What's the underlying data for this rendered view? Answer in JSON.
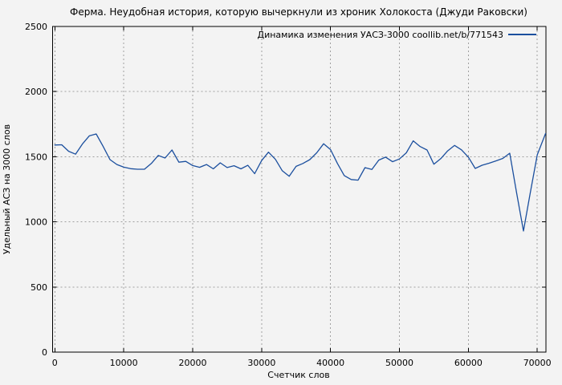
{
  "window": {
    "title": "Ферма. Неудобная история, которую вычеркнули из хроник Холокоста (Джуди Раковски)"
  },
  "colors": {
    "background": "#f3f3f3",
    "border": "#000000",
    "grid": "#a0a0a0",
    "line": "#1b4f9e",
    "text": "#000000"
  },
  "chart_data": {
    "type": "line",
    "title": "Ферма. Неудобная история, которую вычеркнули из хроник Холокоста (Джуди Раковски)",
    "xlabel": "Счетчик слов",
    "ylabel": "Удельный АСЗ на 3000 слов",
    "legend": [
      {
        "label": "Динамика изменения УАСЗ-3000 coollib.net/b/771543",
        "color": "#1b4f9e"
      }
    ],
    "legend_position": "top-right-inside",
    "grid": "dashed",
    "xlim": [
      0,
      71200
    ],
    "ylim": [
      0,
      2500
    ],
    "x_ticks": [
      0,
      10000,
      20000,
      30000,
      40000,
      50000,
      60000,
      70000
    ],
    "y_ticks": [
      0,
      500,
      1000,
      1500,
      2000,
      2500
    ],
    "series": [
      {
        "name": "Динамика изменения УАСЗ-3000 coollib.net/b/771543",
        "color": "#1b4f9e",
        "points": [
          [
            0,
            1590
          ],
          [
            1000,
            1592
          ],
          [
            2000,
            1542
          ],
          [
            3000,
            1520
          ],
          [
            4000,
            1597
          ],
          [
            5000,
            1660
          ],
          [
            6000,
            1675
          ],
          [
            7000,
            1580
          ],
          [
            8000,
            1478
          ],
          [
            9000,
            1440
          ],
          [
            10000,
            1420
          ],
          [
            11000,
            1408
          ],
          [
            12000,
            1404
          ],
          [
            13000,
            1404
          ],
          [
            14000,
            1448
          ],
          [
            15000,
            1510
          ],
          [
            16000,
            1490
          ],
          [
            17000,
            1552
          ],
          [
            18000,
            1458
          ],
          [
            19000,
            1464
          ],
          [
            20000,
            1432
          ],
          [
            21000,
            1419
          ],
          [
            22000,
            1440
          ],
          [
            23000,
            1407
          ],
          [
            24000,
            1453
          ],
          [
            25000,
            1417
          ],
          [
            26000,
            1431
          ],
          [
            27000,
            1407
          ],
          [
            28000,
            1434
          ],
          [
            29000,
            1370
          ],
          [
            30000,
            1470
          ],
          [
            31000,
            1535
          ],
          [
            32000,
            1480
          ],
          [
            33000,
            1392
          ],
          [
            34000,
            1350
          ],
          [
            35000,
            1426
          ],
          [
            36000,
            1448
          ],
          [
            37000,
            1478
          ],
          [
            38000,
            1530
          ],
          [
            39000,
            1600
          ],
          [
            40000,
            1555
          ],
          [
            41000,
            1448
          ],
          [
            42000,
            1355
          ],
          [
            43000,
            1325
          ],
          [
            44000,
            1320
          ],
          [
            45000,
            1416
          ],
          [
            46000,
            1402
          ],
          [
            47000,
            1474
          ],
          [
            48000,
            1497
          ],
          [
            49000,
            1462
          ],
          [
            50000,
            1483
          ],
          [
            51000,
            1530
          ],
          [
            52000,
            1622
          ],
          [
            53000,
            1578
          ],
          [
            54000,
            1552
          ],
          [
            55000,
            1443
          ],
          [
            56000,
            1485
          ],
          [
            57000,
            1545
          ],
          [
            58000,
            1587
          ],
          [
            59000,
            1553
          ],
          [
            60000,
            1497
          ],
          [
            61000,
            1410
          ],
          [
            62000,
            1435
          ],
          [
            63000,
            1450
          ],
          [
            64000,
            1468
          ],
          [
            65000,
            1487
          ],
          [
            66000,
            1527
          ],
          [
            67000,
            1225
          ],
          [
            68000,
            930
          ],
          [
            69000,
            1227
          ],
          [
            70000,
            1515
          ],
          [
            71200,
            1678
          ]
        ]
      }
    ]
  }
}
